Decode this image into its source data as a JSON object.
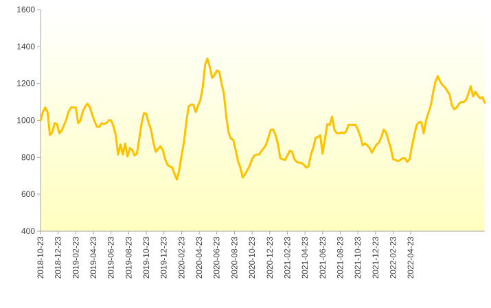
{
  "chart_data": {
    "type": "area",
    "title": "",
    "xlabel": "",
    "ylabel": "",
    "ylim": [
      400,
      1600
    ],
    "yticks": [
      400,
      600,
      800,
      1000,
      1200,
      1400,
      1600
    ],
    "xtick_labels": [
      "2018-10-23",
      "2018-12-23",
      "2019-02-23",
      "2019-04-23",
      "2019-06-23",
      "2019-08-23",
      "2019-10-23",
      "2019-12-23",
      "2020-02-23",
      "2020-04-23",
      "2020-06-23",
      "2020-08-23",
      "2020-10-23",
      "2020-12-23",
      "2021-02-23",
      "2021-04-23",
      "2021-06-23",
      "2021-08-23",
      "2021-10-23",
      "2021-12-23",
      "2022-02-23",
      "2022-04-23"
    ],
    "line_color": "#FFC000",
    "fill_top_color": "#FFFFFF",
    "fill_bottom_color": "#FFFFC0",
    "grid": false,
    "legend": "none",
    "series": [
      {
        "values": [
          1000,
          1045,
          1070,
          1045,
          920,
          935,
          985,
          980,
          930,
          945,
          975,
          1005,
          1050,
          1070,
          1070,
          1070,
          985,
          1000,
          1050,
          1075,
          1090,
          1070,
          1030,
          995,
          965,
          965,
          985,
          980,
          985,
          1000,
          1000,
          970,
          920,
          815,
          870,
          815,
          875,
          805,
          850,
          840,
          810,
          820,
          900,
          985,
          1040,
          1035,
          985,
          950,
          880,
          830,
          845,
          860,
          840,
          790,
          760,
          750,
          745,
          710,
          680,
          730,
          810,
          880,
          990,
          1075,
          1085,
          1085,
          1045,
          1080,
          1110,
          1180,
          1300,
          1335,
          1290,
          1230,
          1245,
          1270,
          1265,
          1200,
          1145,
          1020,
          935,
          900,
          895,
          840,
          780,
          745,
          690,
          710,
          730,
          755,
          790,
          810,
          815,
          815,
          835,
          850,
          870,
          910,
          950,
          950,
          920,
          870,
          795,
          790,
          785,
          810,
          835,
          830,
          790,
          775,
          770,
          770,
          760,
          745,
          750,
          815,
          850,
          905,
          910,
          920,
          820,
          900,
          980,
          975,
          1020,
          950,
          930,
          930,
          935,
          930,
          940,
          975,
          975,
          975,
          975,
          950,
          915,
          865,
          875,
          865,
          850,
          825,
          850,
          870,
          880,
          910,
          950,
          935,
          890,
          850,
          790,
          785,
          780,
          785,
          795,
          795,
          775,
          790,
          860,
          920,
          975,
          990,
          990,
          930,
          1000,
          1040,
          1080,
          1150,
          1210,
          1240,
          1210,
          1190,
          1180,
          1160,
          1140,
          1080,
          1060,
          1070,
          1090,
          1100,
          1100,
          1110,
          1145,
          1185,
          1130,
          1155,
          1135,
          1120,
          1125,
          1095
        ]
      }
    ]
  }
}
